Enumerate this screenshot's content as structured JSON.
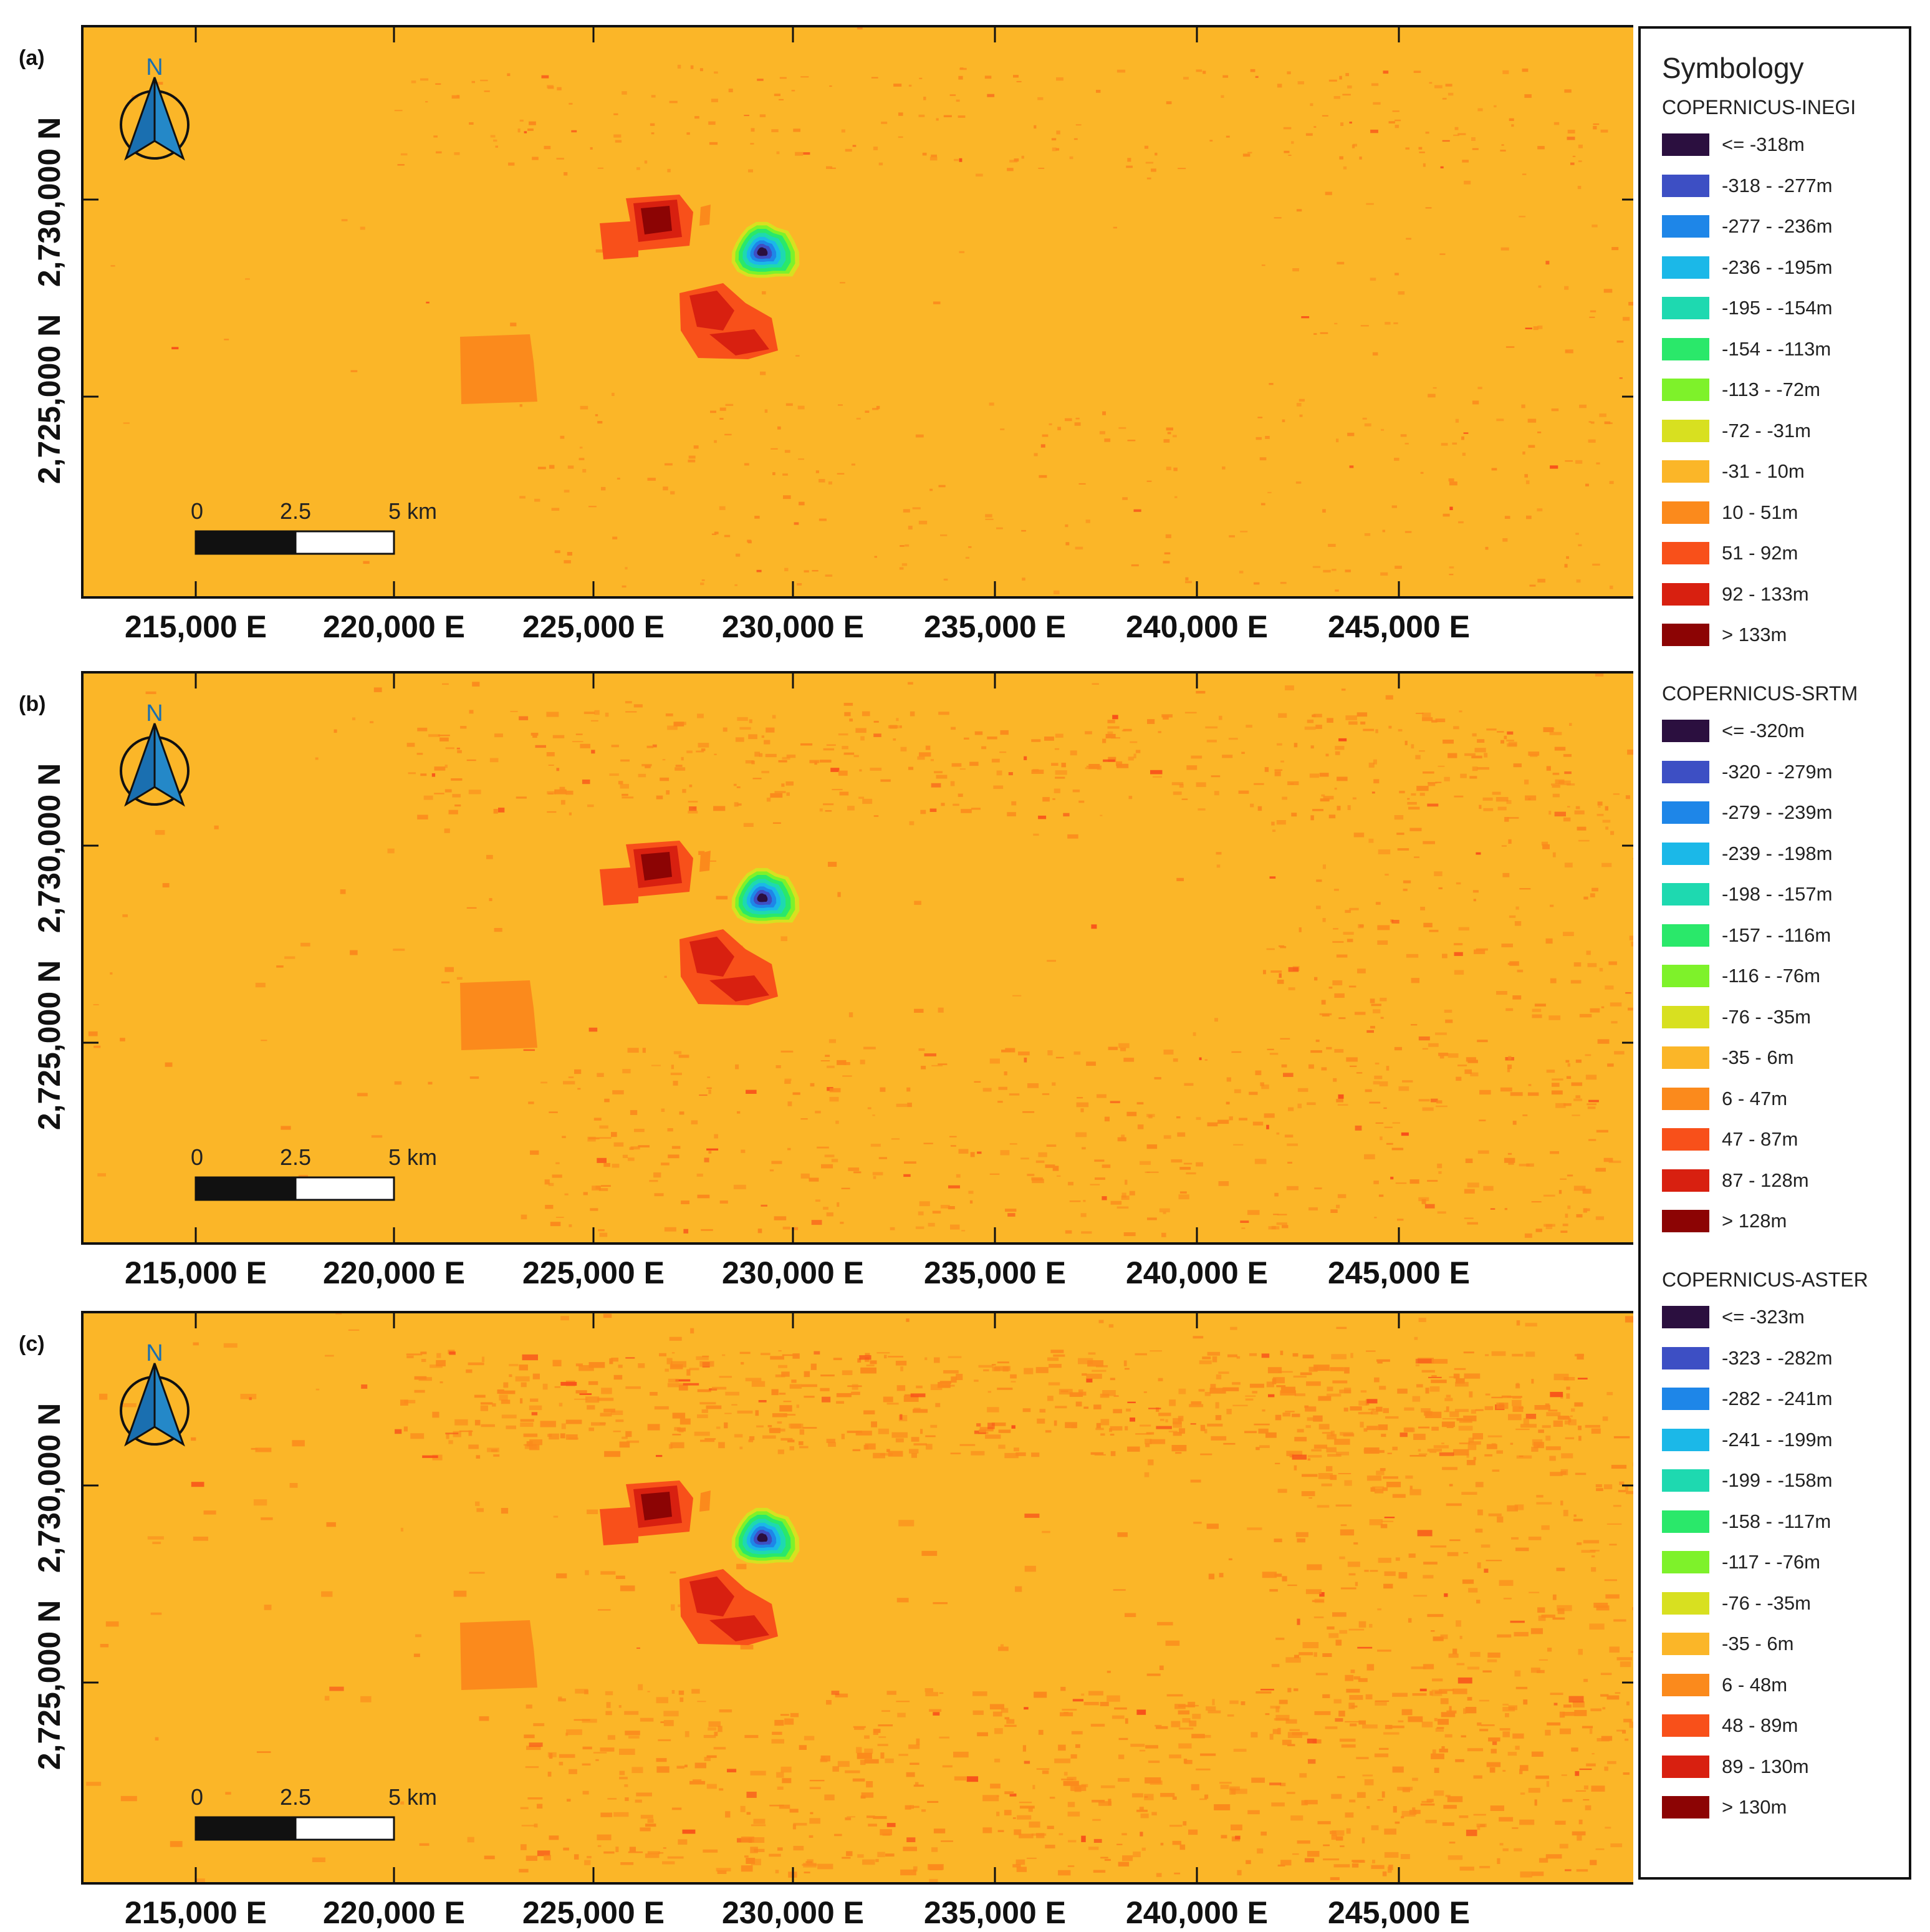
{
  "legend": {
    "title": "Symbology",
    "groups": [
      {
        "title": "COPERNICUS-INEGI",
        "items": [
          "<= -318m",
          "-318 - -277m",
          "-277 - -236m",
          "-236 - -195m",
          "-195 - -154m",
          "-154 - -113m",
          "-113 - -72m",
          "-72 - -31m",
          "-31 - 10m",
          "10 - 51m",
          "51 - 92m",
          "92 - 133m",
          "> 133m"
        ]
      },
      {
        "title": "COPERNICUS-SRTM",
        "items": [
          "<= -320m",
          "-320 - -279m",
          "-279 - -239m",
          "-239 - -198m",
          "-198 - -157m",
          "-157 - -116m",
          "-116 - -76m",
          "-76 - -35m",
          "-35 - 6m",
          "6 - 47m",
          "47 - 87m",
          "87 - 128m",
          "> 128m"
        ]
      },
      {
        "title": "COPERNICUS-ASTER",
        "items": [
          "<= -323m",
          "-323 - -282m",
          "-282 - -241m",
          "-241 - -199m",
          "-199 - -158m",
          "-158 - -117m",
          "-117 - -76m",
          "-76 - -35m",
          "-35 - 6m",
          "6 - 48m",
          "48 - 89m",
          "89 - 130m",
          "> 130m"
        ]
      }
    ],
    "colors": [
      "#2b0f3f",
      "#3d4fc4",
      "#1e86e8",
      "#1bb8e8",
      "#1ed9b0",
      "#2ae86a",
      "#7ef22a",
      "#d8e020",
      "#fbb628",
      "#fb8a1c",
      "#f8501a",
      "#d82010",
      "#8c0404"
    ]
  },
  "panels": [
    {
      "label": "(a)",
      "texture": 0.2
    },
    {
      "label": "(b)",
      "texture": 0.55
    },
    {
      "label": "(c)",
      "texture": 0.9
    }
  ],
  "map": {
    "x_ticks": [
      "215,000 E",
      "220,000 E",
      "225,000 E",
      "230,000 E",
      "235,000 E",
      "240,000 E",
      "245,000 E"
    ],
    "y_ticks": [
      "2,730,000 N",
      "2,725,000 N"
    ],
    "north_label": "N",
    "scale_labels": [
      "0",
      "2.5",
      "5 km"
    ]
  }
}
